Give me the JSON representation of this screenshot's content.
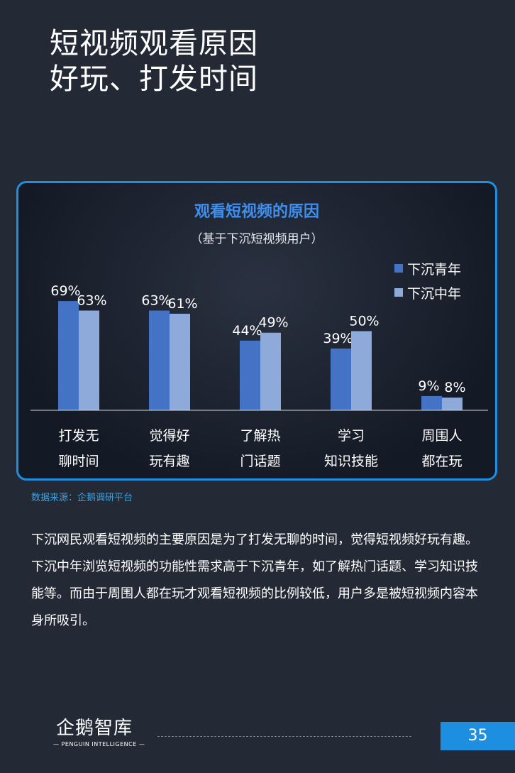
{
  "page": {
    "title_lines": [
      "短视频观看原因",
      "好玩、打发时间"
    ],
    "source": "数据来源：企鹅调研平台",
    "body": "下沉网民观看短视频的主要原因是为了打发无聊的时间，觉得短视频好玩有趣。下沉中年浏览短视频的功能性需求高于下沉青年，如了解热门话题、学习知识技能等。而由于周围人都在玩才观看短视频的比例较低，用户多是被短视频内容本身所吸引。",
    "logo_main": "企鹅智库",
    "logo_sub": "— PENGUIN INTELLIGENCE —",
    "page_number": "35"
  },
  "chart_data": {
    "type": "bar",
    "title": "观看短视频的原因",
    "subtitle": "（基于下沉短视频用户）",
    "categories": [
      [
        "打发无",
        "聊时间"
      ],
      [
        "觉得好",
        "玩有趣"
      ],
      [
        "了解热",
        "门话题"
      ],
      [
        "学习",
        "知识技能"
      ],
      [
        "周围人",
        "都在玩"
      ]
    ],
    "series": [
      {
        "name": "下沉青年",
        "color": "#4472c4",
        "values": [
          69,
          63,
          44,
          39,
          9
        ],
        "labels": [
          "69%",
          "63%",
          "44%",
          "39%",
          "9%"
        ]
      },
      {
        "name": "下沉中年",
        "color": "#8eaadb",
        "values": [
          63,
          61,
          49,
          50,
          8
        ],
        "labels": [
          "63%",
          "61%",
          "49%",
          "50%",
          "8%"
        ]
      }
    ],
    "ylim": [
      0,
      100
    ],
    "legend_position": "top-right",
    "grid": false
  }
}
